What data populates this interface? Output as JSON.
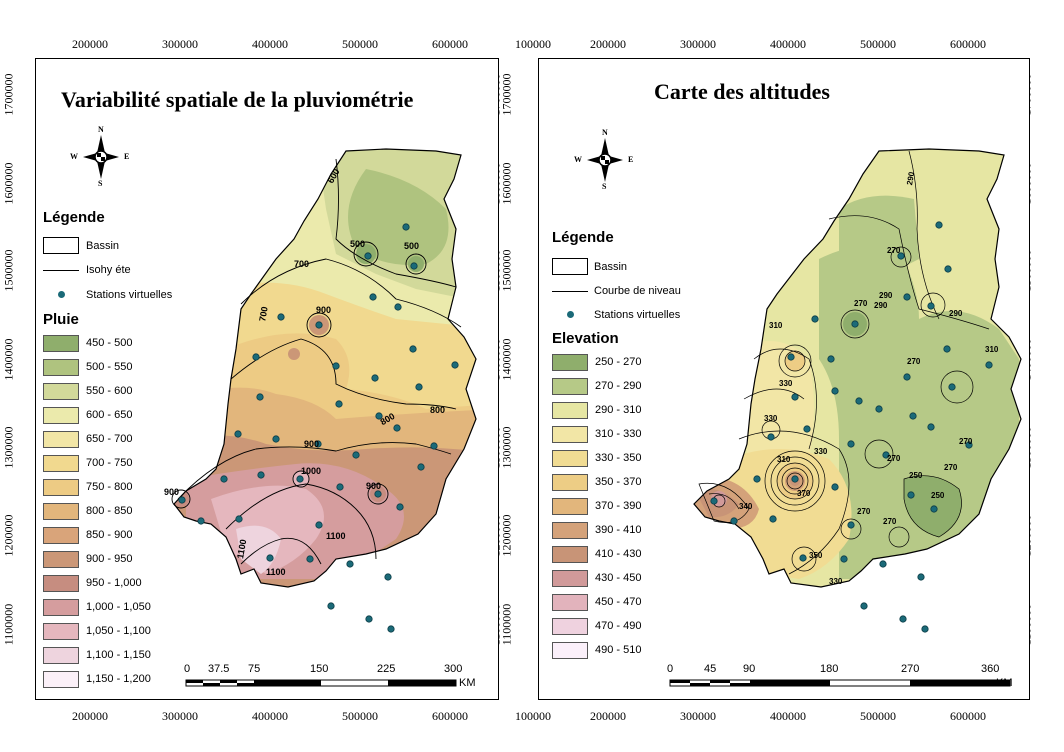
{
  "left": {
    "title": "Variabilité spatiale de la pluviométrie",
    "x_ticks": [
      "200000",
      "300000",
      "400000",
      "500000",
      "600000"
    ],
    "y_ticks": [
      "1700000",
      "1600000",
      "1500000",
      "1400000",
      "1300000",
      "1200000",
      "1100000"
    ],
    "legend": {
      "heading": "Légende",
      "basin": "Bassin",
      "line": "Isohy éte",
      "stations": "Stations virtuelles",
      "classes_heading": "Pluie",
      "classes": [
        {
          "label": "450 - 500",
          "color": "#8fae6c"
        },
        {
          "label": "500 - 550",
          "color": "#afc37f"
        },
        {
          "label": "550 - 600",
          "color": "#d2d99a"
        },
        {
          "label": "600 - 650",
          "color": "#ebeaac"
        },
        {
          "label": "650 - 700",
          "color": "#f2e6a6"
        },
        {
          "label": "700 - 750",
          "color": "#f1d98f"
        },
        {
          "label": "750 - 800",
          "color": "#edcb84"
        },
        {
          "label": "800 - 850",
          "color": "#e2b67c"
        },
        {
          "label": "850 - 900",
          "color": "#d9a47a"
        },
        {
          "label": "900 - 950",
          "color": "#cb9777"
        },
        {
          "label": "950 - 1,000",
          "color": "#c68d80"
        },
        {
          "label": "1,000 - 1,050",
          "color": "#d59d9e"
        },
        {
          "label": "1,050 - 1,100",
          "color": "#e5b7be"
        },
        {
          "label": "1,100 - 1,150",
          "color": "#eed4de"
        },
        {
          "label": "1,150 - 1,200",
          "color": "#fbf0f8"
        }
      ]
    },
    "scale": {
      "labels": [
        "0",
        "37.5",
        "75",
        "150",
        "225",
        "300"
      ],
      "unit": "KM"
    },
    "contour_labels": [
      "500",
      "500",
      "600",
      "700",
      "700",
      "800",
      "800",
      "900",
      "900",
      "900",
      "900",
      "1000",
      "1100",
      "1100",
      "1100"
    ]
  },
  "right": {
    "title": "Carte des altitudes",
    "x_ticks": [
      "100000",
      "200000",
      "300000",
      "400000",
      "500000",
      "600000"
    ],
    "y_ticks": [
      "1700000",
      "1600000",
      "1500000",
      "1400000",
      "1300000",
      "1200000",
      "1100000"
    ],
    "legend": {
      "heading": "Légende",
      "basin": "Bassin",
      "line": "Courbe de niveau",
      "stations": "Stations virtuelles",
      "classes_heading": "Elevation",
      "classes": [
        {
          "label": "250 - 270",
          "color": "#8fae6c"
        },
        {
          "label": "270 - 290",
          "color": "#b6c987"
        },
        {
          "label": "290 - 310",
          "color": "#e6e6a3"
        },
        {
          "label": "310 - 330",
          "color": "#f2e6a6"
        },
        {
          "label": "330 - 350",
          "color": "#f1dc93"
        },
        {
          "label": "350 - 370",
          "color": "#edcd85"
        },
        {
          "label": "370 - 390",
          "color": "#e2b67c"
        },
        {
          "label": "390 - 410",
          "color": "#d4a27a"
        },
        {
          "label": "410 - 430",
          "color": "#c89477"
        },
        {
          "label": "430 - 450",
          "color": "#d19a9a"
        },
        {
          "label": "450 - 470",
          "color": "#e2b3bc"
        },
        {
          "label": "470 - 490",
          "color": "#efd2df"
        },
        {
          "label": "490 - 510",
          "color": "#fbf0fa"
        }
      ]
    },
    "scale": {
      "labels": [
        "0",
        "45",
        "90",
        "180",
        "270",
        "360"
      ],
      "unit": "KM"
    },
    "contour_labels": [
      "290",
      "270",
      "270",
      "310",
      "270",
      "250",
      "270",
      "290",
      "310",
      "330",
      "330",
      "330",
      "270",
      "270",
      "250",
      "370",
      "310",
      "290",
      "290",
      "270",
      "330",
      "350",
      "340",
      "270"
    ]
  },
  "compass": {
    "n": "N",
    "s": "S",
    "e": "E",
    "w": "W"
  }
}
